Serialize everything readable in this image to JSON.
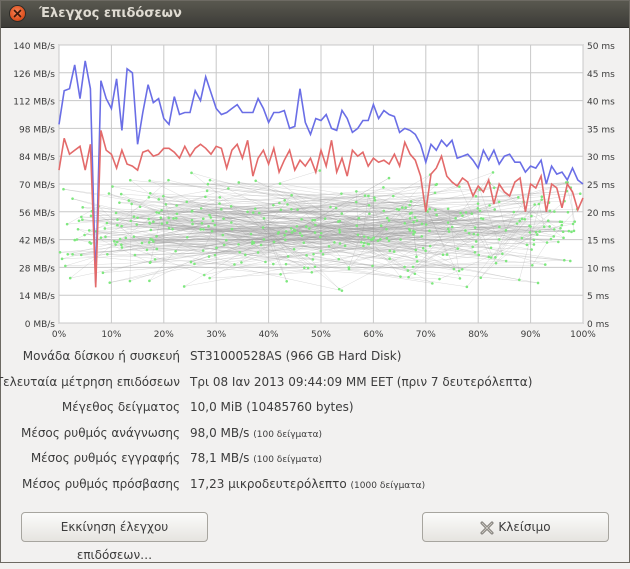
{
  "window": {
    "title": "Έλεγχος επιδόσεων"
  },
  "chart_data": {
    "type": "line",
    "y_left_ticks": [
      "140 MB/s",
      "126 MB/s",
      "112 MB/s",
      "98 MB/s",
      "84 MB/s",
      "70 MB/s",
      "56 MB/s",
      "42 MB/s",
      "28 MB/s",
      "14 MB/s",
      "0 MB/s"
    ],
    "y_right_ticks": [
      "50 ms",
      "45 ms",
      "40 ms",
      "35 ms",
      "30 ms",
      "25 ms",
      "20 ms",
      "15 ms",
      "10 ms",
      "5 ms",
      "0 ms"
    ],
    "x_ticks": [
      "0%",
      "10%",
      "20%",
      "30%",
      "40%",
      "50%",
      "60%",
      "70%",
      "80%",
      "90%",
      "100%"
    ],
    "ylim_left": [
      0,
      140
    ],
    "ylim_right": [
      0,
      50
    ],
    "xlim": [
      0,
      100
    ],
    "grid": true,
    "colors": {
      "read": "#6a6ee6",
      "write": "#e36a6a",
      "access": "#7ee87e",
      "access_line": "#9c9c9c"
    },
    "series": [
      {
        "key": "read",
        "x": [
          0,
          1,
          2,
          3,
          4,
          5,
          6,
          7,
          8,
          9,
          10,
          11,
          12,
          13,
          14,
          15,
          16,
          17,
          18,
          19,
          20,
          21,
          22,
          23,
          24,
          25,
          26,
          27,
          28,
          29,
          30,
          31,
          32,
          33,
          34,
          35,
          36,
          37,
          38,
          39,
          40,
          41,
          42,
          43,
          44,
          45,
          46,
          47,
          48,
          49,
          50,
          51,
          52,
          53,
          54,
          55,
          56,
          57,
          58,
          59,
          60,
          61,
          62,
          63,
          64,
          65,
          66,
          67,
          68,
          69,
          70,
          71,
          72,
          73,
          74,
          75,
          76,
          77,
          78,
          79,
          80,
          81,
          82,
          83,
          84,
          85,
          86,
          87,
          88,
          89,
          90,
          91,
          92,
          93,
          94,
          95,
          96,
          97,
          98,
          99,
          100
        ],
        "values": [
          100,
          117,
          118,
          130,
          113,
          132,
          118,
          20,
          122,
          113,
          108,
          123,
          97,
          128,
          126,
          90,
          106,
          120,
          111,
          113,
          103,
          100,
          114,
          105,
          106,
          106,
          117,
          112,
          124,
          116,
          108,
          105,
          106,
          108,
          110,
          106,
          106,
          106,
          113,
          108,
          101,
          106,
          106,
          107,
          98,
          99,
          118,
          101,
          95,
          103,
          102,
          105,
          98,
          97,
          107,
          103,
          96,
          98,
          102,
          102,
          110,
          103,
          107,
          105,
          104,
          96,
          98,
          97,
          95,
          90,
          81,
          90,
          87,
          92,
          89,
          92,
          83,
          84,
          85,
          82,
          78,
          87,
          82,
          87,
          80,
          84,
          85,
          81,
          81,
          76,
          79,
          78,
          82,
          70,
          79,
          75,
          76,
          72,
          78,
          72,
          70
        ]
      },
      {
        "key": "write",
        "x": [
          0,
          1,
          2,
          3,
          4,
          5,
          6,
          7,
          8,
          9,
          10,
          11,
          12,
          13,
          14,
          15,
          16,
          17,
          18,
          19,
          20,
          21,
          22,
          23,
          24,
          25,
          26,
          27,
          28,
          29,
          30,
          31,
          32,
          33,
          34,
          35,
          36,
          37,
          38,
          39,
          40,
          41,
          42,
          43,
          44,
          45,
          46,
          47,
          48,
          49,
          50,
          51,
          52,
          53,
          54,
          55,
          56,
          57,
          58,
          59,
          60,
          61,
          62,
          63,
          64,
          65,
          66,
          67,
          68,
          69,
          70,
          71,
          72,
          73,
          74,
          75,
          76,
          77,
          78,
          79,
          80,
          81,
          82,
          83,
          84,
          85,
          86,
          87,
          88,
          89,
          90,
          91,
          92,
          93,
          94,
          95,
          96,
          97,
          98,
          99,
          100
        ],
        "values": [
          77,
          93,
          85,
          87,
          89,
          77,
          90,
          18,
          97,
          87,
          85,
          78,
          87,
          80,
          79,
          77,
          86,
          87,
          84,
          85,
          88,
          88,
          86,
          83,
          89,
          84,
          88,
          90,
          88,
          85,
          89,
          88,
          78,
          87,
          90,
          83,
          92,
          74,
          83,
          87,
          80,
          88,
          76,
          82,
          87,
          77,
          82,
          79,
          83,
          76,
          87,
          79,
          92,
          76,
          83,
          74,
          87,
          84,
          86,
          79,
          83,
          81,
          82,
          80,
          85,
          79,
          91,
          85,
          82,
          74,
          56,
          75,
          78,
          84,
          74,
          71,
          69,
          73,
          71,
          64,
          69,
          66,
          72,
          60,
          70,
          66,
          64,
          71,
          73,
          56,
          70,
          68,
          74,
          56,
          70,
          68,
          58,
          70,
          66,
          57,
          63
        ]
      }
    ]
  },
  "info": [
    {
      "label": "Μονάδα δίσκου ή συσκευή",
      "value": "ST31000528AS (966 GB Hard Disk)",
      "sub": ""
    },
    {
      "label": "Τελευταία μέτρηση επιδόσεων",
      "value": "Τρι 08 Ιαν 2013 09:44:09 MM EET (πριν 7 δευτερόλεπτα)",
      "sub": ""
    },
    {
      "label": "Μέγεθος δείγματος",
      "value": "10,0 MiB (10485760 bytes)",
      "sub": ""
    },
    {
      "label": "Μέσος ρυθμός ανάγνωσης",
      "value": "98,0 MB/s",
      "sub": "(100 δείγματα)"
    },
    {
      "label": "Μέσος ρυθμός εγγραφής",
      "value": "78,1 MB/s",
      "sub": "(100 δείγματα)"
    },
    {
      "label": "Μέσος ρυθμός πρόσβασης",
      "value": "17,23 μικροδευτερόλεπτο",
      "sub": "(1000 δείγματα)"
    }
  ],
  "buttons": {
    "start": "Εκκίνηση έλεγχου επιδόσεων…",
    "close": "Κλείσιμο"
  }
}
